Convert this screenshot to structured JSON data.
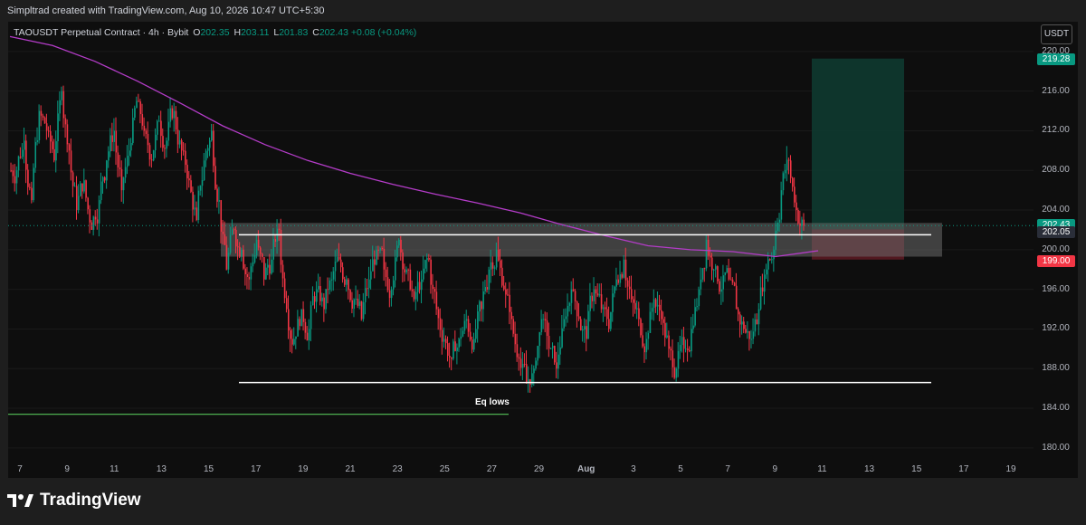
{
  "header": {
    "attribution": "Simpltrad created with TradingView.com, Aug 10, 2026 10:47 UTC+5:30"
  },
  "legend": {
    "symbol": "TAOUSDT Perpetual Contract · 4h · Bybit",
    "open_label": "O",
    "open": "202.35",
    "high_label": "H",
    "high": "203.11",
    "low_label": "L",
    "low": "201.83",
    "close_label": "C",
    "close": "202.43",
    "change": "+0.08 (+0.04%)"
  },
  "quote_currency": "USDT",
  "footer": {
    "brand": "TradingView"
  },
  "colors": {
    "up": "#089981",
    "down": "#f23645",
    "ma": "#b43cc8",
    "zone": "#6a6a6a",
    "level_line": "#ffffff",
    "low_line": "#4caf50",
    "target_zone": "#0e3a30",
    "stop_zone": "#5a1a22"
  },
  "chart_data": {
    "type": "candlestick",
    "symbol": "TAOUSDT Perpetual Contract",
    "interval": "4h",
    "exchange": "Bybit",
    "ylim": [
      178.8,
      223.0
    ],
    "y_ticks": [
      "180.00",
      "184.00",
      "188.00",
      "192.00",
      "196.00",
      "200.00",
      "204.00",
      "208.00",
      "212.00",
      "216.00",
      "220.00"
    ],
    "x_ticks": [
      "7",
      "9",
      "11",
      "13",
      "15",
      "17",
      "19",
      "21",
      "23",
      "25",
      "27",
      "29",
      "Aug",
      "3",
      "5",
      "7",
      "9",
      "11",
      "13",
      "15",
      "17",
      "19"
    ],
    "price_tags": [
      {
        "label": "219.28",
        "value": 219.28,
        "kind": "target"
      },
      {
        "label": "202.43",
        "value": 202.43,
        "kind": "last"
      },
      {
        "label": "202.05",
        "value": 202.05,
        "kind": "entry"
      },
      {
        "label": "199.00",
        "value": 199.0,
        "kind": "stop"
      }
    ],
    "annotations": [
      {
        "type": "zone",
        "top": 202.7,
        "bottom": 199.3,
        "label": ""
      },
      {
        "type": "hline",
        "value": 201.5,
        "label": ""
      },
      {
        "type": "hline",
        "value": 186.6,
        "label": "Eq lows"
      },
      {
        "type": "hline",
        "value": 183.4,
        "label": ""
      }
    ],
    "position": {
      "side": "long",
      "entry": 202.05,
      "target": 219.28,
      "stop": 199.0
    },
    "series": [
      {
        "type": "close_path",
        "values": [
          208.0,
          211.0,
          205.0,
          214.0,
          212.0,
          209.0,
          216.0,
          210.0,
          204.0,
          207.0,
          202.0,
          205.0,
          209.0,
          212.0,
          206.0,
          210.0,
          215.0,
          212.0,
          209.0,
          213.0,
          211.0,
          214.0,
          210.0,
          207.0,
          203.0,
          209.0,
          212.0,
          205.0,
          198.0,
          202.0,
          200.0,
          197.0,
          201.0,
          197.0,
          199.0,
          202.0,
          194.0,
          191.0,
          194.0,
          192.0,
          196.0,
          194.0,
          197.0,
          199.0,
          197.0,
          195.0,
          193.0,
          197.0,
          200.0,
          198.0,
          196.0,
          201.0,
          198.0,
          195.0,
          197.0,
          199.0,
          194.0,
          191.0,
          189.0,
          191.0,
          193.0,
          191.0,
          194.0,
          198.0,
          200.0,
          196.0,
          193.0,
          189.0,
          186.5,
          188.0,
          193.0,
          190.0,
          188.0,
          193.0,
          196.0,
          193.0,
          191.0,
          196.0,
          194.0,
          192.0,
          197.0,
          199.0,
          195.0,
          193.0,
          191.0,
          195.0,
          193.0,
          190.0,
          188.0,
          190.0,
          192.0,
          196.0,
          201.0,
          198.0,
          196.0,
          197.0,
          194.0,
          192.0,
          191.0,
          194.0,
          198.0,
          200.0,
          206.0,
          209.0,
          204.0,
          202.43
        ]
      },
      {
        "type": "moving_average",
        "values": [
          221.5,
          220.6,
          219.0,
          217.0,
          214.8,
          212.5,
          210.6,
          209.0,
          207.7,
          206.6,
          205.6,
          204.7,
          203.7,
          202.5,
          201.4,
          200.4,
          200.0,
          199.8,
          199.3,
          199.9
        ]
      }
    ]
  }
}
